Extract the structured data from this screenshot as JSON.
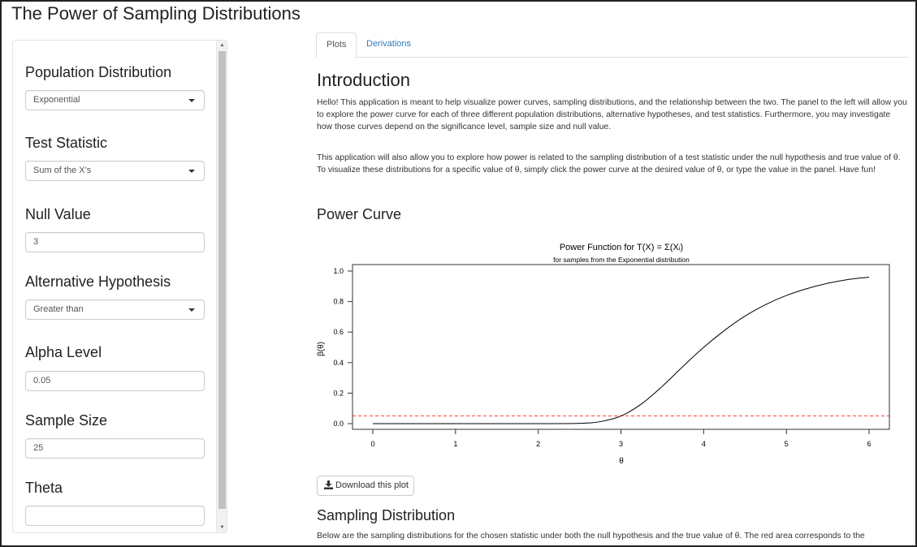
{
  "app": {
    "title": "The Power of Sampling Distributions"
  },
  "sidebar": {
    "fields": [
      {
        "label": "Population Distribution",
        "type": "select",
        "value": "Exponential"
      },
      {
        "label": "Test Statistic",
        "type": "select",
        "value": "Sum of the X's"
      },
      {
        "label": "Null Value",
        "type": "input",
        "value": "3"
      },
      {
        "label": "Alternative Hypothesis",
        "type": "select",
        "value": "Greater than"
      },
      {
        "label": "Alpha Level",
        "type": "input",
        "value": "0.05"
      },
      {
        "label": "Sample Size",
        "type": "input",
        "value": "25"
      },
      {
        "label": "Theta",
        "type": "input",
        "value": ""
      }
    ]
  },
  "tabs": [
    {
      "label": "Plots",
      "active": true
    },
    {
      "label": "Derivations",
      "active": false
    }
  ],
  "main": {
    "intro_heading": "Introduction",
    "intro_p1": "Hello! This application is meant to help visualize power curves, sampling distributions, and the relationship between the two. The panel to the left will allow you to explore the power curve for each of three different population distributions, alternative hypotheses, and test statistics. Furthermore, you may investigate how those curves depend on the significance level, sample size and null value.",
    "intro_p2": "This application will also allow you to explore how power is related to the sampling distribution of a test statistic under the null hypothesis and true value of θ. To visualize these distributions for a specific value of θ, simply click the power curve at the desired value of θ, or type the value in the panel. Have fun!",
    "power_heading": "Power Curve",
    "download_label": "Download this plot",
    "sampling_heading": "Sampling Distribution",
    "sampling_p": "Below are the sampling distributions for the chosen statistic under both the null hypothesis and the true value of θ. The red area corresponds to the"
  },
  "chart_data": {
    "type": "line",
    "title": "Power Function for T(X) = Σ(Xᵢ)",
    "subtitle": "for samples from the Exponential distribution",
    "xlabel": "θ",
    "ylabel": "β(θ)",
    "xlim": [
      0,
      6
    ],
    "ylim": [
      0,
      1
    ],
    "x_ticks": [
      "0",
      "1",
      "2",
      "3",
      "4",
      "5",
      "6"
    ],
    "y_ticks": [
      "0.0",
      "0.2",
      "0.4",
      "0.6",
      "0.8",
      "1.0"
    ],
    "series": [
      {
        "x": [
          0,
          0.5,
          1,
          1.5,
          2,
          2.5,
          2.75,
          3,
          3.25,
          3.5,
          3.75,
          4,
          4.25,
          4.5,
          4.75,
          5,
          5.25,
          5.5,
          5.75,
          6
        ],
        "y": [
          0,
          0,
          0,
          0,
          0,
          0.002,
          0.013,
          0.05,
          0.13,
          0.245,
          0.375,
          0.5,
          0.61,
          0.705,
          0.78,
          0.84,
          0.885,
          0.92,
          0.945,
          0.96
        ],
        "color": "#000000"
      }
    ],
    "reference_line": {
      "y": 0.05,
      "color": "#ff0000",
      "style": "dashed"
    }
  },
  "colors": {
    "link": "#337ab7",
    "accent_red": "#ff0000"
  },
  "icons": {
    "download": "download-icon",
    "dropdown": "caret-down-icon"
  }
}
